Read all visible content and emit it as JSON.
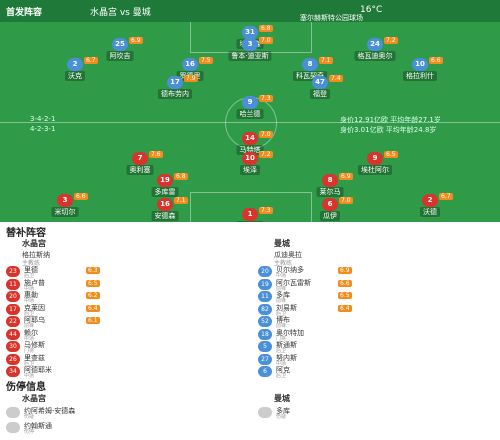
{
  "header": {
    "title": "首发阵容",
    "match": "水晶宫 vs 曼城",
    "weather": "16°C",
    "venue": "塞尔赫斯特公园球场"
  },
  "pitch": {
    "away_formation": "3-4-2-1",
    "away_info": "身价12.91亿欧 平均年龄27.1岁",
    "home_formation": "4-2-3-1",
    "home_info": "身价3.01亿欧 平均年龄24.8岁"
  },
  "away_players": [
    {
      "number": "31",
      "name": "埃德森",
      "rating": "6.8"
    },
    {
      "number": "25",
      "name": "阿坎吉",
      "rating": "6.9"
    },
    {
      "number": "3",
      "name": "鲁本·迪亚斯",
      "rating": "7.0"
    },
    {
      "number": "24",
      "name": "格瓦迪奥尔",
      "rating": "7.2"
    },
    {
      "number": "2",
      "name": "沃克",
      "rating": "6.7"
    },
    {
      "number": "16",
      "name": "罗德里",
      "rating": "7.5"
    },
    {
      "number": "8",
      "name": "科瓦契奇",
      "rating": "7.1"
    },
    {
      "number": "10",
      "name": "格拉利什",
      "rating": "6.6"
    },
    {
      "number": "17",
      "name": "德布劳内",
      "rating": "7.9"
    },
    {
      "number": "47",
      "name": "福登",
      "rating": "7.4"
    },
    {
      "number": "9",
      "name": "哈兰德",
      "rating": "7.3"
    }
  ],
  "home_players": [
    {
      "number": "14",
      "name": "马特塔",
      "rating": "7.0"
    },
    {
      "number": "7",
      "name": "奥利塞",
      "rating": "7.6"
    },
    {
      "number": "10",
      "name": "埃泽",
      "rating": "7.2"
    },
    {
      "number": "9",
      "name": "埃杜阿尔",
      "rating": "6.5"
    },
    {
      "number": "19",
      "name": "多库雷",
      "rating": "6.8"
    },
    {
      "number": "8",
      "name": "莱尔马",
      "rating": "6.9"
    },
    {
      "number": "3",
      "name": "米切尔",
      "rating": "6.6"
    },
    {
      "number": "16",
      "name": "安德森",
      "rating": "7.1"
    },
    {
      "number": "6",
      "name": "瓜伊",
      "rating": "7.0"
    },
    {
      "number": "2",
      "name": "沃德",
      "rating": "6.7"
    },
    {
      "number": "1",
      "name": "亨德森",
      "rating": "7.3"
    }
  ],
  "subs": {
    "title": "替补阵容",
    "home_team": "水晶宫",
    "away_team": "曼城",
    "coach_label": "主教练",
    "home_coach": "格拉斯纳",
    "away_coach": "瓜迪奥拉",
    "home": [
      {
        "number": "23",
        "name": "里德",
        "position": "后卫",
        "rating": "6.3"
      },
      {
        "number": "11",
        "name": "施卢普",
        "position": "中场",
        "rating": "6.5"
      },
      {
        "number": "20",
        "name": "惠勒",
        "position": "中场",
        "rating": "6.2"
      },
      {
        "number": "17",
        "name": "克莱因",
        "position": "后卫",
        "rating": "6.4"
      },
      {
        "number": "22",
        "name": "阿耶乌",
        "position": "前锋",
        "rating": "6.1"
      },
      {
        "number": "44",
        "name": "赖尔",
        "position": "中场"
      },
      {
        "number": "30",
        "name": "马修斯",
        "position": "门将"
      },
      {
        "number": "26",
        "name": "里查兹",
        "position": "后卫"
      },
      {
        "number": "34",
        "name": "阿德耶米",
        "position": "中场"
      }
    ],
    "away": [
      {
        "number": "20",
        "name": "贝尔纳多",
        "position": "中场",
        "rating": "6.9"
      },
      {
        "number": "19",
        "name": "阿尔瓦雷斯",
        "position": "前锋",
        "rating": "6.6"
      },
      {
        "number": "11",
        "name": "多库",
        "position": "前锋",
        "rating": "6.5"
      },
      {
        "number": "82",
        "name": "刘易斯",
        "position": "后卫",
        "rating": "6.4"
      },
      {
        "number": "52",
        "name": "博布",
        "position": "前锋"
      },
      {
        "number": "18",
        "name": "奥尔特加",
        "position": "门将"
      },
      {
        "number": "5",
        "name": "斯通斯",
        "position": "后卫"
      },
      {
        "number": "27",
        "name": "努内斯",
        "position": "中场"
      },
      {
        "number": "6",
        "name": "阿克",
        "position": "后卫"
      }
    ]
  },
  "injuries": {
    "title": "伤停信息",
    "home_team": "水晶宫",
    "away_team": "曼城",
    "home": [
      {
        "name": "约阿希姆·安德森",
        "status": "伤疑"
      },
      {
        "name": "约翰斯通",
        "status": "伤停"
      }
    ],
    "away": [
      {
        "name": "多库",
        "status": "伤疑"
      }
    ]
  }
}
